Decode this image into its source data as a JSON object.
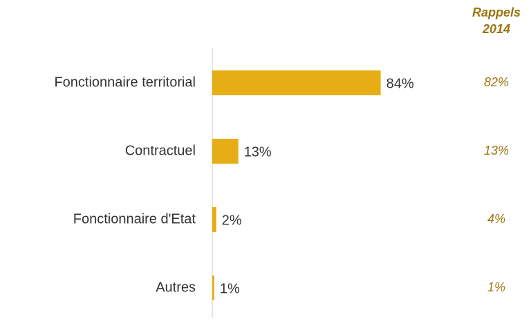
{
  "chart_data": {
    "type": "bar",
    "orientation": "horizontal",
    "categories": [
      "Fonctionnaire territorial",
      "Contractuel",
      "Fonctionnaire d'Etat",
      "Autres"
    ],
    "values": [
      84,
      13,
      2,
      1
    ],
    "value_labels": [
      "84%",
      "13%",
      "2%",
      "1%"
    ],
    "color": "#e6ae14",
    "xlim": [
      0,
      100
    ],
    "recall": {
      "name": "Rappels 2014",
      "values": [
        82,
        13,
        4,
        1
      ],
      "value_labels": [
        "82%",
        "13%",
        "4%",
        "1%"
      ],
      "color": "#9a7512"
    }
  }
}
